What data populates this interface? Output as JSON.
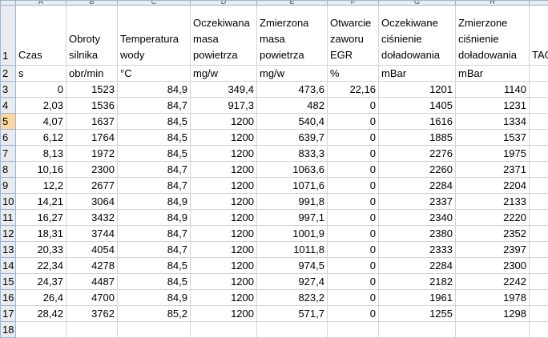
{
  "columns": [
    "A",
    "B",
    "C",
    "D",
    "E",
    "F",
    "G",
    "H",
    ""
  ],
  "header_row": {
    "row_number": "1",
    "cells": [
      "Czas",
      "Obroty silnika",
      "Temperatura wody",
      "Oczekiwana masa powietrza",
      "Zmierzona masa powietrza",
      "Otwarcie zaworu EGR",
      "Oczekiwane ciśnienie doładowania",
      "Zmierzone ciśnienie doładowania",
      "TAG"
    ]
  },
  "unit_row": {
    "row_number": "2",
    "cells": [
      "s",
      "obr/min",
      "°C",
      "mg/w",
      "mg/w",
      "%",
      "mBar",
      "mBar",
      ""
    ]
  },
  "data_rows": [
    {
      "row_number": "3",
      "cells": [
        "0",
        "1523",
        "84,9",
        "349,4",
        "473,6",
        "22,16",
        "1201",
        "1140",
        ""
      ]
    },
    {
      "row_number": "4",
      "cells": [
        "2,03",
        "1536",
        "84,7",
        "917,3",
        "482",
        "0",
        "1405",
        "1231",
        ""
      ]
    },
    {
      "row_number": "5",
      "cells": [
        "4,07",
        "1637",
        "84,5",
        "1200",
        "540,4",
        "0",
        "1616",
        "1334",
        ""
      ]
    },
    {
      "row_number": "6",
      "cells": [
        "6,12",
        "1764",
        "84,5",
        "1200",
        "639,7",
        "0",
        "1885",
        "1537",
        ""
      ]
    },
    {
      "row_number": "7",
      "cells": [
        "8,13",
        "1972",
        "84,5",
        "1200",
        "833,3",
        "0",
        "2276",
        "1975",
        ""
      ]
    },
    {
      "row_number": "8",
      "cells": [
        "10,16",
        "2300",
        "84,7",
        "1200",
        "1063,6",
        "0",
        "2260",
        "2371",
        ""
      ]
    },
    {
      "row_number": "9",
      "cells": [
        "12,2",
        "2677",
        "84,7",
        "1200",
        "1071,6",
        "0",
        "2284",
        "2204",
        ""
      ]
    },
    {
      "row_number": "10",
      "cells": [
        "14,21",
        "3064",
        "84,9",
        "1200",
        "991,8",
        "0",
        "2337",
        "2133",
        ""
      ]
    },
    {
      "row_number": "11",
      "cells": [
        "16,27",
        "3432",
        "84,9",
        "1200",
        "997,1",
        "0",
        "2340",
        "2220",
        ""
      ]
    },
    {
      "row_number": "12",
      "cells": [
        "18,31",
        "3744",
        "84,7",
        "1200",
        "1001,9",
        "0",
        "2380",
        "2352",
        ""
      ]
    },
    {
      "row_number": "13",
      "cells": [
        "20,33",
        "4054",
        "84,7",
        "1200",
        "1011,8",
        "0",
        "2333",
        "2397",
        ""
      ]
    },
    {
      "row_number": "14",
      "cells": [
        "22,34",
        "4278",
        "84,5",
        "1200",
        "974,5",
        "0",
        "2284",
        "2300",
        ""
      ]
    },
    {
      "row_number": "15",
      "cells": [
        "24,37",
        "4487",
        "84,5",
        "1200",
        "927,4",
        "0",
        "2182",
        "2242",
        ""
      ]
    },
    {
      "row_number": "16",
      "cells": [
        "26,4",
        "4700",
        "84,9",
        "1200",
        "823,2",
        "0",
        "1961",
        "1978",
        ""
      ]
    },
    {
      "row_number": "17",
      "cells": [
        "28,42",
        "3762",
        "85,2",
        "1200",
        "571,7",
        "0",
        "1255",
        "1298",
        ""
      ]
    },
    {
      "row_number": "18",
      "cells": [
        "",
        "",
        "",
        "",
        "",
        "",
        "",
        "",
        ""
      ]
    }
  ],
  "active_row": "5"
}
